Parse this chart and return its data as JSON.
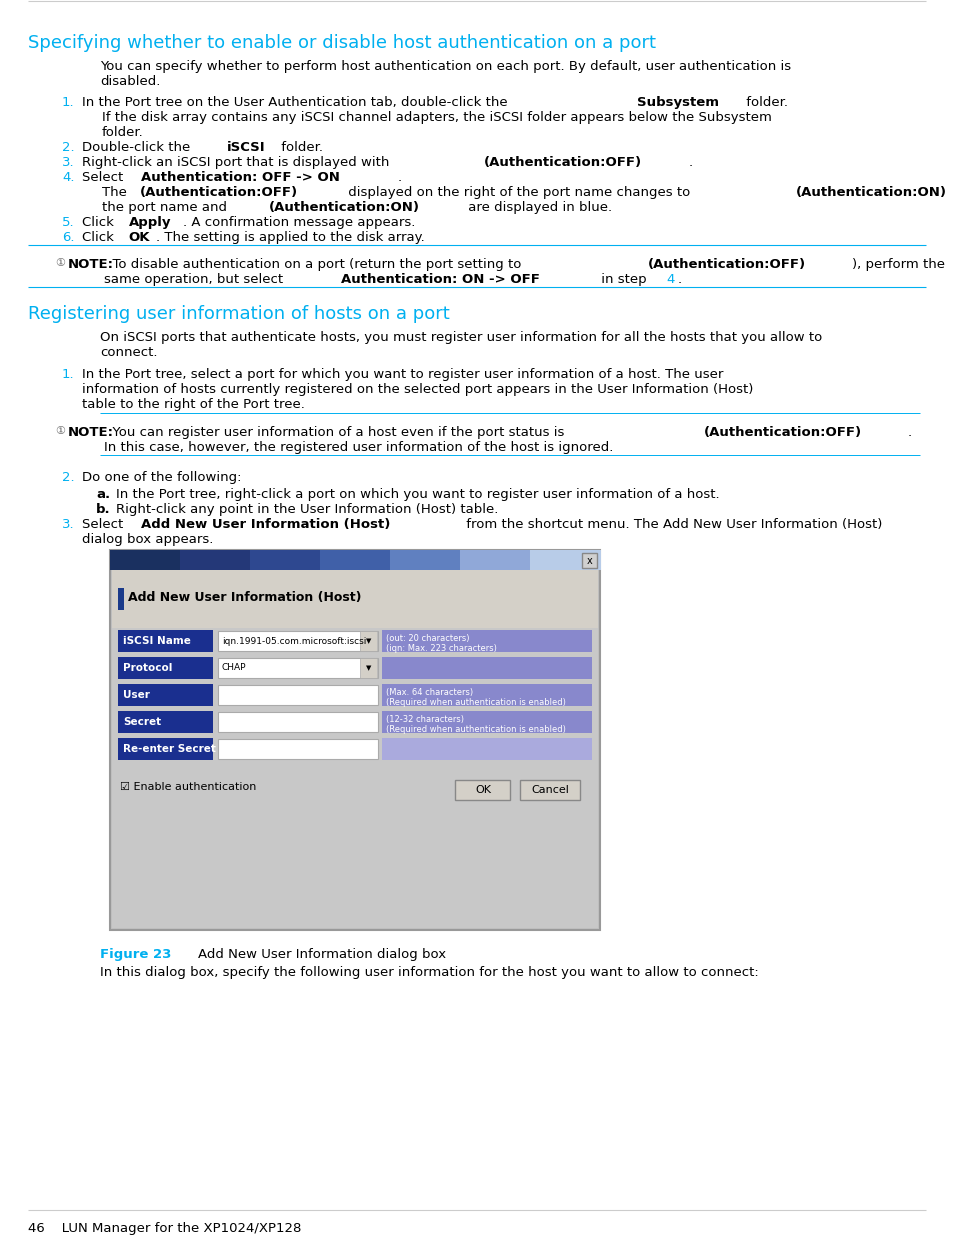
{
  "bg_color": "#ffffff",
  "cyan_color": "#00b0f0",
  "text_color": "#000000",
  "section1_title": "Specifying whether to enable or disable host authentication on a port",
  "section2_title": "Registering user information of hosts on a port",
  "figure_label": "Figure 23",
  "figure_caption": "Add New User Information dialog box",
  "footer_text": "46    LUN Manager for the XP1024/XP128",
  "dlg_label_color": "#1a2f8f",
  "dlg_hint_color": "#8888cc",
  "dlg_hint_color2": "#aaaadd",
  "dlg_bg_color": "#c0c0c0",
  "dlg_title_bar_colors": [
    "#1a3060",
    "#243878",
    "#2e4890",
    "#4060a8",
    "#6080c0",
    "#90a8d8",
    "#b8cce8"
  ],
  "note_icon_color": "#444444",
  "line_color": "#00b0f0",
  "line_color2": "#cccccc"
}
